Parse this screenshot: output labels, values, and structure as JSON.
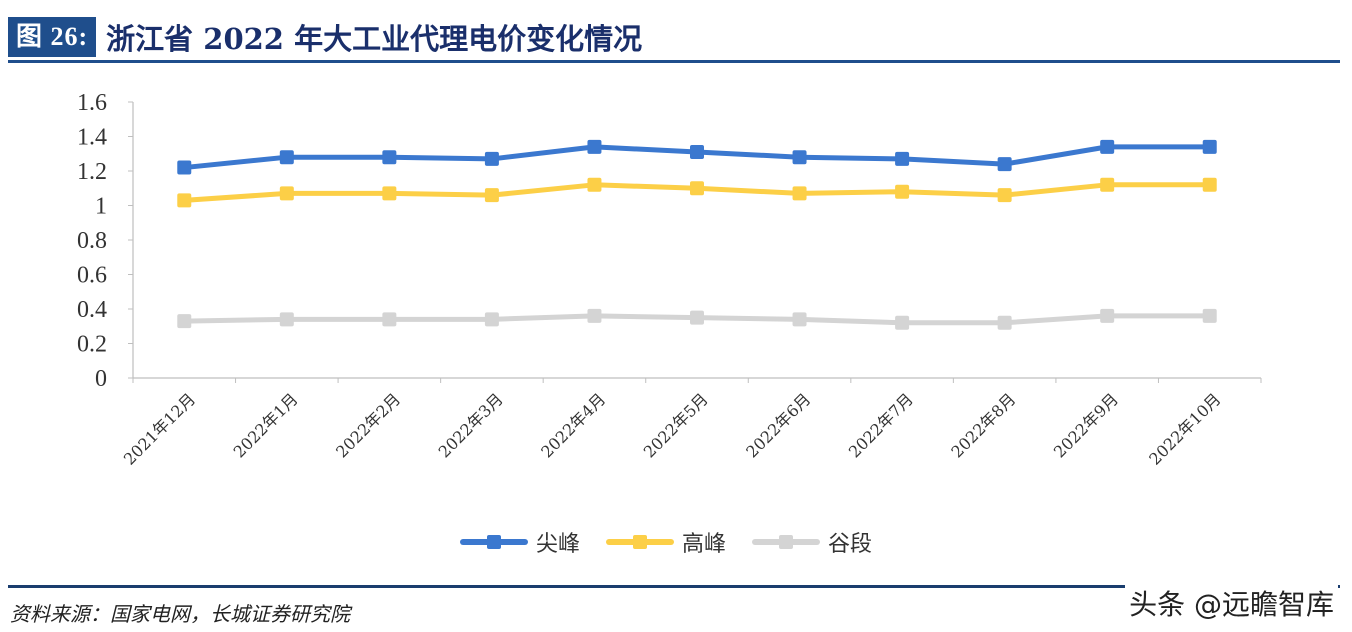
{
  "header": {
    "figure_label": "图 26:",
    "title": "浙江省 2022 年大工业代理电价变化情况"
  },
  "footer": {
    "source": "资料来源：国家电网，长城证券研究院",
    "watermark": "头条 @远瞻智库"
  },
  "colors": {
    "header_bg": "#1f4e8c",
    "title_text": "#1a2f6b",
    "peak": "#3b78cf",
    "high": "#fccf47",
    "valley": "#d4d4d4",
    "axis": "#bfbfbf"
  },
  "chart_data": {
    "type": "line",
    "title": "浙江省 2022 年大工业代理电价变化情况",
    "xlabel": "",
    "ylabel": "",
    "ylim": [
      0,
      1.6
    ],
    "yticks": [
      "0",
      "0.2",
      "0.4",
      "0.6",
      "0.8",
      "1",
      "1.2",
      "1.4",
      "1.6"
    ],
    "grid": false,
    "legend_position": "bottom",
    "categories": [
      "2021年12月",
      "2022年1月",
      "2022年2月",
      "2022年3月",
      "2022年4月",
      "2022年5月",
      "2022年6月",
      "2022年7月",
      "2022年8月",
      "2022年9月",
      "2022年10月"
    ],
    "series": [
      {
        "name": "尖峰",
        "color": "#3b78cf",
        "values": [
          1.22,
          1.28,
          1.28,
          1.27,
          1.34,
          1.31,
          1.28,
          1.27,
          1.24,
          1.34,
          1.34
        ]
      },
      {
        "name": "高峰",
        "color": "#fccf47",
        "values": [
          1.03,
          1.07,
          1.07,
          1.06,
          1.12,
          1.1,
          1.07,
          1.08,
          1.06,
          1.12,
          1.12
        ]
      },
      {
        "name": "谷段",
        "color": "#d4d4d4",
        "values": [
          0.33,
          0.34,
          0.34,
          0.34,
          0.36,
          0.35,
          0.34,
          0.32,
          0.32,
          0.36,
          0.36
        ]
      }
    ]
  }
}
